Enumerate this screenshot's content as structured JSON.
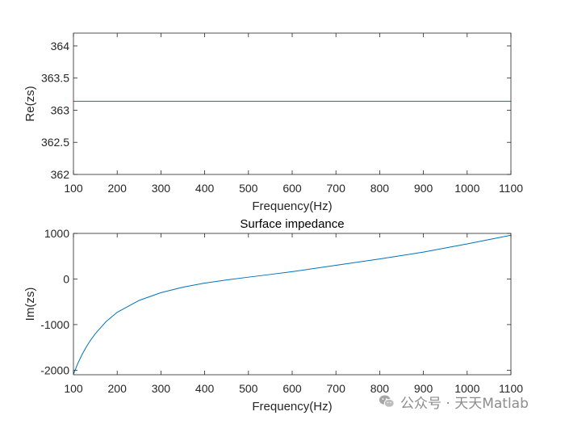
{
  "chart_data": [
    {
      "type": "line",
      "title": "",
      "xlabel": "Frequency(Hz)",
      "ylabel": "Re(zs)",
      "xlim": [
        100,
        1100
      ],
      "ylim": [
        362,
        364.2
      ],
      "xticks": [
        100,
        200,
        300,
        400,
        500,
        600,
        700,
        800,
        900,
        1000,
        1100
      ],
      "yticks": [
        362,
        362.5,
        363,
        363.5,
        364
      ],
      "ytick_labels": [
        "362",
        "362.5",
        "363",
        "363.5",
        "364"
      ],
      "grid": false,
      "series": [
        {
          "color": "#0072bd",
          "x": [
            100,
            1100
          ],
          "y": [
            363.14,
            363.14
          ]
        }
      ]
    },
    {
      "type": "line",
      "title": "Surface impedance",
      "xlabel": "Frequency(Hz)",
      "ylabel": "Im(zs)",
      "xlim": [
        100,
        1100
      ],
      "ylim": [
        -2100,
        1000
      ],
      "xticks": [
        100,
        200,
        300,
        400,
        500,
        600,
        700,
        800,
        900,
        1000,
        1100
      ],
      "yticks": [
        -2000,
        -1000,
        0,
        1000
      ],
      "ytick_labels": [
        "-2000",
        "-1000",
        "0",
        "1000"
      ],
      "grid": false,
      "series": [
        {
          "color": "#0072bd",
          "x": [
            100,
            110,
            120,
            130,
            140,
            150,
            175,
            200,
            250,
            300,
            350,
            400,
            450,
            500,
            550,
            600,
            700,
            800,
            900,
            1000,
            1100
          ],
          "y": [
            -2090,
            -1850,
            -1650,
            -1480,
            -1330,
            -1200,
            -930,
            -730,
            -470,
            -300,
            -180,
            -90,
            -20,
            40,
            100,
            160,
            300,
            440,
            590,
            770,
            960
          ]
        }
      ]
    }
  ],
  "watermark": {
    "text": "公众号 · 天天Matlab",
    "icon": "wechat-icon"
  }
}
